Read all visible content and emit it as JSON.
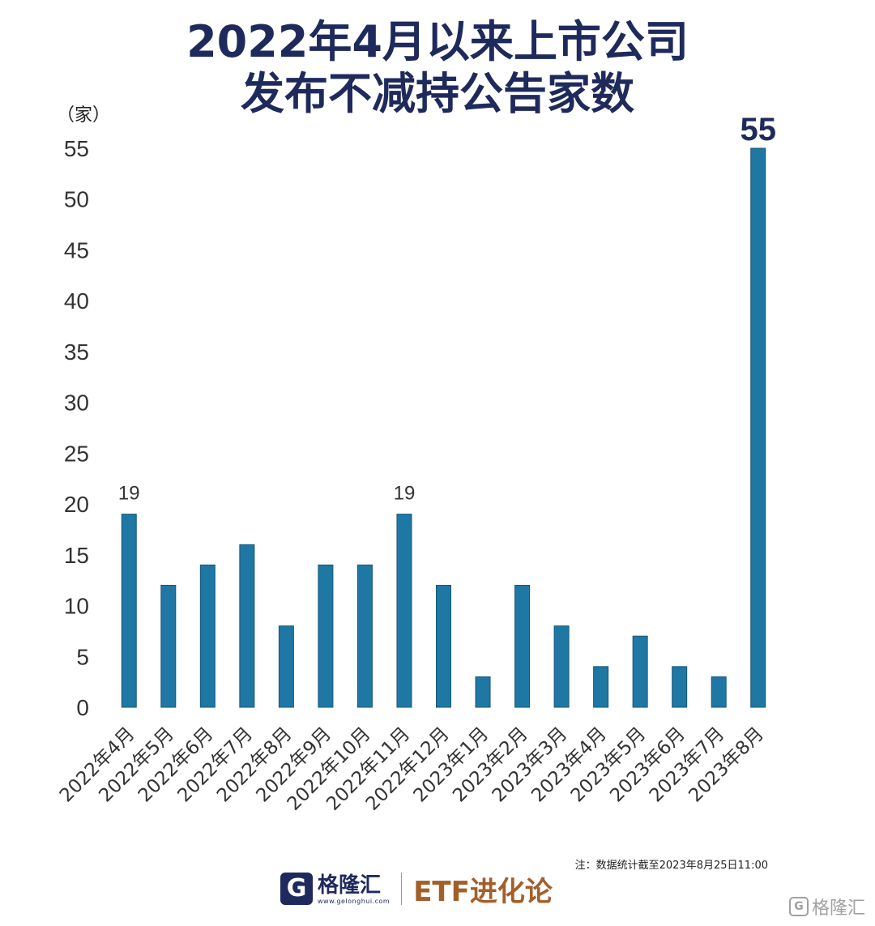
{
  "title_line1": "2022年4月以来上市公司",
  "title_line2": "发布不减持公告家数",
  "unit_label": "（家）",
  "note": "注：数据统计截至2023年8月25日11:00",
  "footer": {
    "logo_icon": "G",
    "logo_name": "格隆汇",
    "logo_url": "www.gelonghui.com",
    "etf_text": "ETF进化论"
  },
  "watermark": {
    "icon": "G",
    "text": "格隆汇"
  },
  "colors": {
    "bar": "#1f77a4",
    "title": "#1f2a5c",
    "etf": "#a35f2a"
  },
  "chart_data": {
    "type": "bar",
    "title": "2022年4月以来上市公司发布不减持公告家数",
    "ylabel": "（家）",
    "xlabel": "",
    "ylim": [
      0,
      55
    ],
    "yticks": [
      0,
      5,
      10,
      15,
      20,
      25,
      30,
      35,
      40,
      45,
      50,
      55
    ],
    "grid": false,
    "categories": [
      "2022年4月",
      "2022年5月",
      "2022年6月",
      "2022年7月",
      "2022年8月",
      "2022年9月",
      "2022年10月",
      "2022年11月",
      "2022年12月",
      "2023年1月",
      "2023年2月",
      "2023年3月",
      "2023年4月",
      "2023年5月",
      "2023年6月",
      "2023年7月",
      "2023年8月"
    ],
    "values": [
      19,
      12,
      14,
      16,
      8,
      14,
      14,
      19,
      12,
      3,
      12,
      8,
      4,
      7,
      4,
      3,
      55
    ],
    "data_labels": [
      {
        "index": 0,
        "text": "19"
      },
      {
        "index": 7,
        "text": "19"
      },
      {
        "index": 16,
        "text": "55"
      }
    ]
  }
}
